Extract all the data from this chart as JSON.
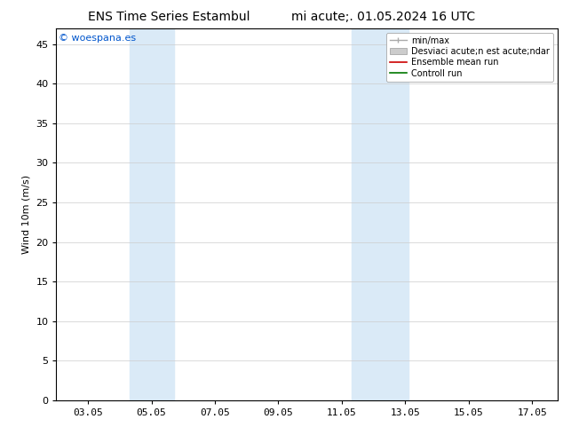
{
  "title_left": "ENS Time Series Estambul",
  "title_right": "mi acute;. 01.05.2024 16 UTC",
  "ylabel": "Wind 10m (m/s)",
  "watermark": "© woespana.es",
  "watermark_color": "#0055cc",
  "bg_color": "#ffffff",
  "plot_bg_color": "#ffffff",
  "shaded_bands": [
    {
      "xmin": 4.3,
      "xmax": 5.7,
      "color": "#daeaf7"
    },
    {
      "xmin": 11.3,
      "xmax": 13.1,
      "color": "#daeaf7"
    }
  ],
  "xmin": 2.0,
  "xmax": 17.8,
  "ymin": 0,
  "ymax": 47,
  "yticks": [
    0,
    5,
    10,
    15,
    20,
    25,
    30,
    35,
    40,
    45
  ],
  "xtick_labels": [
    "03.05",
    "05.05",
    "07.05",
    "09.05",
    "11.05",
    "13.05",
    "15.05",
    "17.05"
  ],
  "xtick_positions": [
    3,
    5,
    7,
    9,
    11,
    13,
    15,
    17
  ],
  "legend_labels": [
    "min/max",
    "Desviaci acute;n est acute;ndar",
    "Ensemble mean run",
    "Controll run"
  ],
  "legend_colors": [
    "#aaaaaa",
    "#cccccc",
    "#cc0000",
    "#007700"
  ],
  "grid_color": "#cccccc",
  "tick_color": "#000000",
  "spine_color": "#000000",
  "title_fontsize": 10,
  "label_fontsize": 8,
  "tick_fontsize": 8,
  "watermark_fontsize": 8,
  "legend_fontsize": 7
}
